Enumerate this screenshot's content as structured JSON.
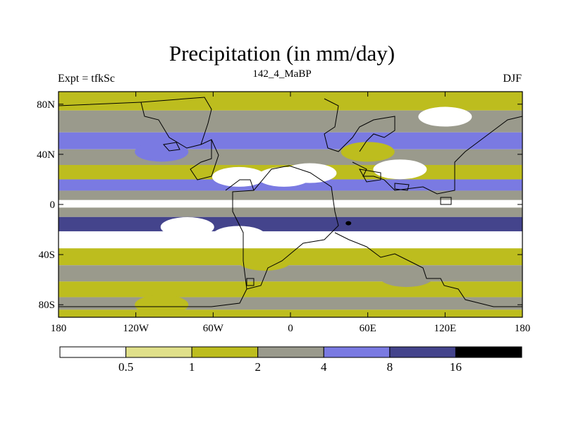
{
  "title": "Precipitation (in mm/day)",
  "subtitle_left": "Expt = tfkSc",
  "subtitle_center": "142_4_MaBP",
  "subtitle_right": "DJF",
  "lat_ticks": [
    {
      "value": 80,
      "label": "80N"
    },
    {
      "value": 40,
      "label": "40N"
    },
    {
      "value": 0,
      "label": "0"
    },
    {
      "value": -40,
      "label": "40S"
    },
    {
      "value": -80,
      "label": "80S"
    }
  ],
  "lon_ticks": [
    {
      "value": -180,
      "label": "180"
    },
    {
      "value": -120,
      "label": "120W"
    },
    {
      "value": -60,
      "label": "60W"
    },
    {
      "value": 0,
      "label": "0"
    },
    {
      "value": 60,
      "label": "60E"
    },
    {
      "value": 120,
      "label": "120E"
    },
    {
      "value": 180,
      "label": "180"
    }
  ],
  "colorbar": {
    "levels": [
      "0.5",
      "1",
      "2",
      "4",
      "8",
      "16"
    ],
    "colors": [
      "#ffffff",
      "#e0e08a",
      "#bdbd1e",
      "#9a9a8c",
      "#7a7ae2",
      "#44448c",
      "#000000"
    ]
  },
  "chart_data": {
    "type": "heatmap",
    "title": "Precipitation (in mm/day)",
    "variable": "Precipitation",
    "units": "mm/day",
    "experiment": "tfkSc",
    "period": "142_4_MaBP",
    "season": "DJF",
    "x_range": [
      -180,
      180
    ],
    "y_range": [
      -90,
      90
    ],
    "contour_levels": [
      0.5,
      1,
      2,
      4,
      8,
      16
    ],
    "zonal_bands_mm_per_day": [
      {
        "lat": 85,
        "value": 1.5
      },
      {
        "lat": 65,
        "value": 3.0
      },
      {
        "lat": 50,
        "value": 5.0
      },
      {
        "lat": 38,
        "value": 3.0
      },
      {
        "lat": 25,
        "value": 1.5
      },
      {
        "lat": 15,
        "value": 5.0
      },
      {
        "lat": 7,
        "value": 3.0
      },
      {
        "lat": 0,
        "value": 0.4
      },
      {
        "lat": -5,
        "value": 3.0
      },
      {
        "lat": -15,
        "value": 10.0
      },
      {
        "lat": -28,
        "value": 0.4
      },
      {
        "lat": -42,
        "value": 1.5
      },
      {
        "lat": -55,
        "value": 3.0
      },
      {
        "lat": -68,
        "value": 1.5
      },
      {
        "lat": -80,
        "value": 3.0
      },
      {
        "lat": -88,
        "value": 1.5
      }
    ],
    "local_anomalies": [
      {
        "lon": -100,
        "lat": 42,
        "value": 6
      },
      {
        "lon": -40,
        "lat": 22,
        "value": 0.3
      },
      {
        "lon": -5,
        "lat": 22,
        "value": 0.3
      },
      {
        "lon": 15,
        "lat": 25,
        "value": 0.3
      },
      {
        "lon": 85,
        "lat": 28,
        "value": 0.3
      },
      {
        "lon": 120,
        "lat": 70,
        "value": 0.3
      },
      {
        "lon": 60,
        "lat": 42,
        "value": 1.5
      },
      {
        "lon": 45,
        "lat": -15,
        "value": 20
      },
      {
        "lon": -80,
        "lat": -18,
        "value": 0.3
      },
      {
        "lon": -40,
        "lat": -25,
        "value": 0.3
      },
      {
        "lon": -20,
        "lat": -45,
        "value": 1.5
      },
      {
        "lon": 90,
        "lat": -58,
        "value": 2
      },
      {
        "lon": -100,
        "lat": -80,
        "value": 1.5
      }
    ]
  }
}
